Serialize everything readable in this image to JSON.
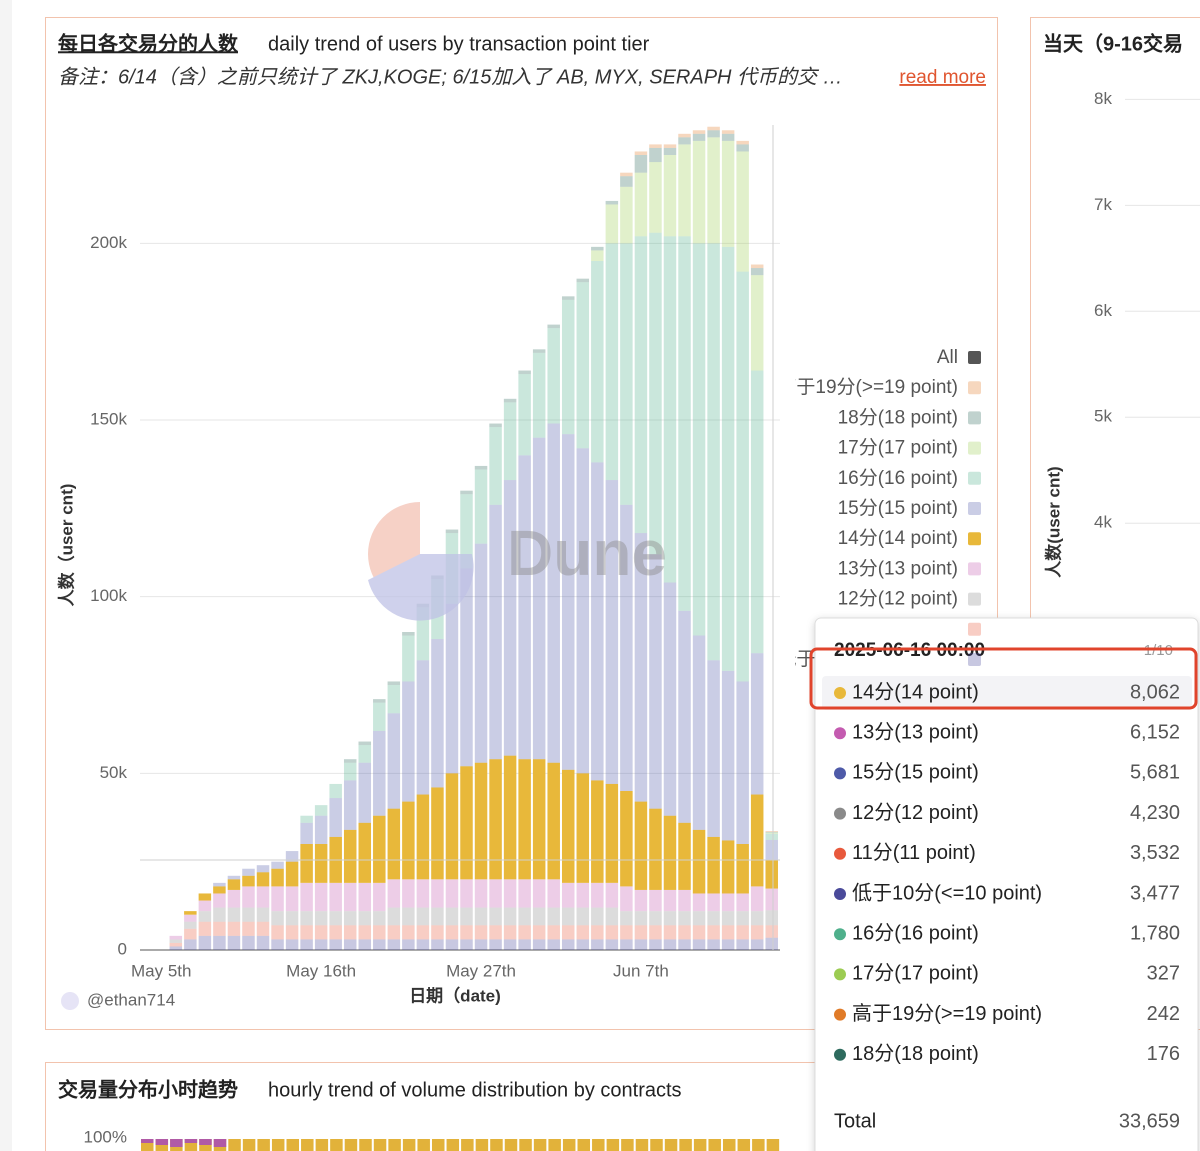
{
  "chart_data": [
    {
      "type": "bar",
      "stacked": true,
      "title": "每日各交易分的人数",
      "subtitle": "daily trend of users by transaction point tier",
      "note": "备注：6/14（含）之前只统计了 ZKJ,KOGE; 6/15加入了 AB, MYX, SERAPH 代币的交 …",
      "note_link": "read more",
      "watermark": "Dune",
      "author": "@ethan714",
      "xlabel": "日期（date)",
      "ylabel": "人数（user cnt)",
      "categories": [
        "May 5th",
        null,
        null,
        null,
        null,
        null,
        null,
        null,
        null,
        null,
        null,
        "May 16th",
        null,
        null,
        null,
        null,
        null,
        null,
        null,
        null,
        null,
        null,
        "May 27th",
        null,
        null,
        null,
        null,
        null,
        null,
        null,
        null,
        null,
        null,
        "Jun 7th",
        null,
        null,
        null,
        null,
        null,
        null,
        null,
        null,
        null
      ],
      "series": [
        {
          "name": "低于10分(<=10 point)",
          "color": "#4a4a9a",
          "values": [
            null,
            1000,
            3000,
            4000,
            4000,
            4000,
            4000,
            4000,
            3000,
            3000,
            3000,
            3000,
            3000,
            3000,
            3000,
            3000,
            3000,
            3000,
            3000,
            3000,
            3000,
            3000,
            3000,
            3000,
            3000,
            3000,
            3000,
            3000,
            3000,
            3000,
            3000,
            3000,
            3000,
            3000,
            3000,
            3000,
            3000,
            3000,
            3000,
            3000,
            3000,
            3000,
            3477
          ]
        },
        {
          "name": "11分(11 point)",
          "color": "#e8593c",
          "values": [
            null,
            1000,
            3000,
            4000,
            4000,
            4000,
            4000,
            4000,
            4000,
            4000,
            4000,
            4000,
            4000,
            4000,
            4000,
            4000,
            4000,
            4000,
            4000,
            4000,
            4000,
            4000,
            4000,
            4000,
            4000,
            4000,
            4000,
            4000,
            4000,
            4000,
            4000,
            4000,
            4000,
            4000,
            4000,
            4000,
            4000,
            4000,
            4000,
            4000,
            4000,
            4000,
            3532
          ]
        },
        {
          "name": "12分(12 point)",
          "color": "#8a8a8a",
          "values": [
            null,
            1000,
            2000,
            3000,
            4000,
            4000,
            4000,
            4000,
            4000,
            4000,
            4000,
            4000,
            4000,
            4000,
            4000,
            4000,
            5000,
            5000,
            5000,
            5000,
            5000,
            5000,
            5000,
            5000,
            5000,
            5000,
            5000,
            5000,
            5000,
            5000,
            5000,
            5000,
            4000,
            4000,
            4000,
            4000,
            4000,
            4000,
            4000,
            4000,
            4000,
            4000,
            4230
          ]
        },
        {
          "name": "13分(13 point)",
          "color": "#c45bb0",
          "values": [
            null,
            1000,
            2000,
            3000,
            4000,
            5000,
            6000,
            6000,
            7000,
            7000,
            8000,
            8000,
            8000,
            8000,
            8000,
            8000,
            8000,
            8000,
            8000,
            8000,
            8000,
            8000,
            8000,
            8000,
            8000,
            8000,
            8000,
            8000,
            7000,
            7000,
            7000,
            7000,
            7000,
            6000,
            6000,
            6000,
            6000,
            5000,
            5000,
            5000,
            5000,
            7000,
            6152
          ]
        },
        {
          "name": "14分(14 point)",
          "color": "#e8b83a",
          "values": [
            null,
            0,
            1000,
            2000,
            2000,
            3000,
            3000,
            4000,
            5000,
            7000,
            11000,
            11000,
            13000,
            15000,
            17000,
            19000,
            20000,
            22000,
            24000,
            26000,
            30000,
            32000,
            33000,
            34000,
            35000,
            34000,
            34000,
            33000,
            32000,
            31000,
            29000,
            28000,
            27000,
            25000,
            23000,
            21000,
            19000,
            18000,
            16000,
            15000,
            14000,
            26000,
            8062
          ]
        },
        {
          "name": "15分(15 point)",
          "color": "#4e5aa8",
          "values": [
            null,
            0,
            0,
            0,
            1000,
            1000,
            2000,
            2000,
            2000,
            3000,
            6000,
            8000,
            11000,
            14000,
            17000,
            24000,
            27000,
            34000,
            38000,
            42000,
            48000,
            56000,
            62000,
            72000,
            78000,
            86000,
            91000,
            96000,
            95000,
            92000,
            90000,
            86000,
            81000,
            76000,
            72000,
            66000,
            60000,
            55000,
            50000,
            48000,
            46000,
            40000,
            5681
          ]
        },
        {
          "name": "16分(16 point)",
          "color": "#4fb08c",
          "values": [
            null,
            0,
            0,
            0,
            0,
            0,
            0,
            0,
            0,
            0,
            2000,
            3000,
            4000,
            5000,
            5000,
            8000,
            8000,
            13000,
            15000,
            17000,
            20000,
            21000,
            21000,
            22000,
            22000,
            23000,
            24000,
            27000,
            38000,
            47000,
            57000,
            67000,
            74000,
            84000,
            91000,
            98000,
            106000,
            111000,
            118000,
            120000,
            116000,
            80000,
            1780
          ]
        },
        {
          "name": "17分(17 point)",
          "color": "#9ccc52",
          "values": [
            null,
            0,
            0,
            0,
            0,
            0,
            0,
            0,
            0,
            0,
            0,
            0,
            0,
            0,
            0,
            0,
            0,
            0,
            0,
            0,
            0,
            0,
            0,
            0,
            0,
            0,
            0,
            0,
            0,
            0,
            3000,
            11000,
            16000,
            18000,
            20000,
            23000,
            26000,
            29000,
            30000,
            30000,
            34000,
            27000,
            327
          ]
        },
        {
          "name": "18分(18 point)",
          "color": "#2e6b5e",
          "values": [
            null,
            0,
            0,
            0,
            0,
            0,
            0,
            0,
            0,
            0,
            0,
            0,
            0,
            1000,
            1000,
            1000,
            1000,
            1000,
            1000,
            1000,
            1000,
            1000,
            1000,
            1000,
            1000,
            1000,
            1000,
            1000,
            1000,
            1000,
            1000,
            1000,
            3000,
            5000,
            4000,
            2000,
            2000,
            2000,
            2000,
            2000,
            2000,
            2000,
            176
          ]
        },
        {
          "name": "高于19分(>=19 point)",
          "color": "#e07b28",
          "values": [
            null,
            0,
            0,
            0,
            0,
            0,
            0,
            0,
            0,
            0,
            0,
            0,
            0,
            0,
            0,
            0,
            0,
            0,
            0,
            0,
            0,
            0,
            0,
            0,
            0,
            0,
            0,
            0,
            0,
            0,
            0,
            0,
            1000,
            1000,
            1000,
            1000,
            1000,
            1000,
            1000,
            1000,
            1000,
            1000,
            242
          ]
        }
      ],
      "ylim": [
        0,
        240000
      ],
      "yticks": [
        0,
        {
          "value": 50000,
          "label": "50k"
        },
        {
          "value": 100000,
          "label": "100k"
        },
        {
          "value": 150000,
          "label": "150k"
        },
        {
          "value": 200000,
          "label": "200k"
        }
      ],
      "grid": true,
      "legend": "right",
      "legend_header": "All",
      "legend_header_color": "#555555",
      "highlight": "14分(14 point)"
    },
    {
      "type": "bar",
      "title": "当天（9-16交易",
      "ylabel": "人数(user cnt)",
      "ylim": [
        0,
        8400
      ],
      "yticks": [
        {
          "value": 4000,
          "label": "4k"
        },
        {
          "value": 5000,
          "label": "5k"
        },
        {
          "value": 6000,
          "label": "6k"
        },
        {
          "value": 7000,
          "label": "7k"
        },
        {
          "value": 8000,
          "label": "8k"
        }
      ],
      "grid": true
    },
    {
      "type": "bar",
      "title": "交易量分布小时趋势",
      "subtitle": "hourly trend of volume distribution by contracts",
      "ylim": [
        0,
        100
      ],
      "yticks": [
        {
          "value": 100,
          "label": "100%"
        }
      ],
      "grid": false
    }
  ],
  "tooltip": {
    "title": "2025-06-16 00:00",
    "page": "1/10",
    "rows": [
      {
        "name": "14分(14 point)",
        "color": "#e8b83a",
        "value": "8,062"
      },
      {
        "name": "13分(13 point)",
        "color": "#c45bb0",
        "value": "6,152"
      },
      {
        "name": "15分(15 point)",
        "color": "#4e5aa8",
        "value": "5,681"
      },
      {
        "name": "12分(12 point)",
        "color": "#8a8a8a",
        "value": "4,230"
      },
      {
        "name": "11分(11 point)",
        "color": "#e8593c",
        "value": "3,532"
      },
      {
        "name": "低于10分(<=10 point)",
        "color": "#4a4a9a",
        "value": "3,477"
      },
      {
        "name": "16分(16 point)",
        "color": "#4fb08c",
        "value": "1,780"
      },
      {
        "name": "17分(17 point)",
        "color": "#9ccc52",
        "value": "327"
      },
      {
        "name": "高于19分(>=19 point)",
        "color": "#e07b28",
        "value": "242"
      },
      {
        "name": "18分(18 point)",
        "color": "#2e6b5e",
        "value": "176"
      }
    ],
    "total_label": "Total",
    "total": "33,659"
  }
}
